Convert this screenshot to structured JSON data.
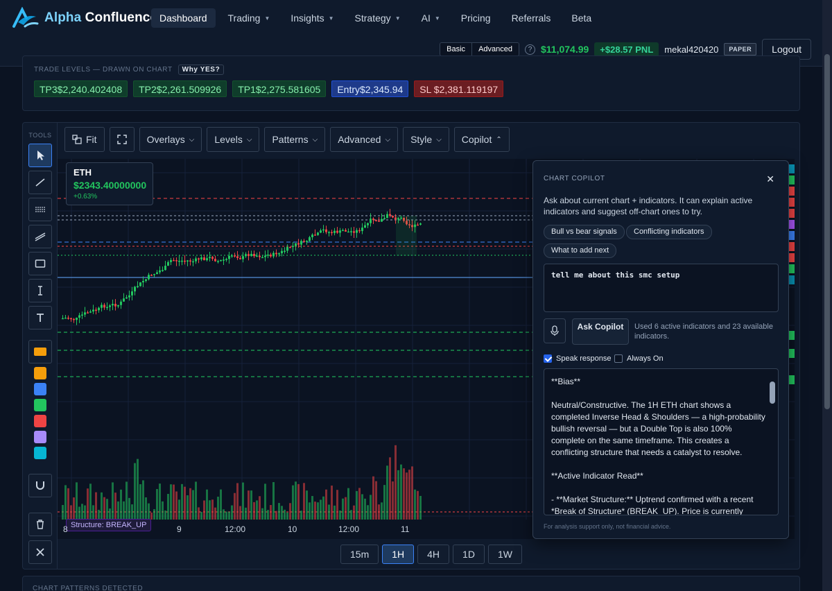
{
  "brand": {
    "name_part1": "Alpha",
    "name_part2": "Confluence"
  },
  "nav": {
    "items": [
      {
        "label": "Dashboard",
        "caret": false
      },
      {
        "label": "Trading",
        "caret": true
      },
      {
        "label": "Insights",
        "caret": true
      },
      {
        "label": "Strategy",
        "caret": true
      },
      {
        "label": "AI",
        "caret": true
      },
      {
        "label": "Pricing",
        "caret": false
      },
      {
        "label": "Referrals",
        "caret": false
      },
      {
        "label": "Beta",
        "caret": false
      }
    ]
  },
  "account": {
    "mode_basic": "Basic",
    "mode_advanced": "Advanced",
    "help": "?",
    "balance": "$11,074.99",
    "pnl": "+$28.57 PNL",
    "username": "mekal420420",
    "paper_badge": "PAPER",
    "logout": "Logout"
  },
  "trade_levels": {
    "heading": "TRADE LEVELS — DRAWN ON CHART",
    "why_button": "Why YES?",
    "chips": [
      {
        "label": "TP3$2,240.402408",
        "kind": "tp"
      },
      {
        "label": "TP2$2,261.509926",
        "kind": "tp"
      },
      {
        "label": "TP1$2,275.581605",
        "kind": "tp"
      },
      {
        "label": "Entry$2,345.94",
        "kind": "entry"
      },
      {
        "label": "SL $2,381.119197",
        "kind": "sl"
      }
    ]
  },
  "tools": {
    "label": "TOOLS",
    "swatch_colors": [
      "#f59e0b",
      "#3b82f6",
      "#22c55e",
      "#ef4444",
      "#a78bfa",
      "#06b6d4"
    ],
    "active_color": "#f59e0b"
  },
  "toolbar": {
    "fit": "Fit",
    "overlays": "Overlays",
    "levels": "Levels",
    "patterns": "Patterns",
    "advanced": "Advanced",
    "style": "Style",
    "copilot": "Copilot"
  },
  "ticker": {
    "symbol": "ETH",
    "price": "$2343.40000000",
    "change": "+0.63%"
  },
  "chart": {
    "structure_badge": "Structure: BREAK_UP",
    "x_labels": [
      "8",
      "9",
      "12:00",
      "10",
      "12:00",
      "11"
    ],
    "timeframes": [
      "15m",
      "1H",
      "4H",
      "1D",
      "1W"
    ],
    "active_timeframe": "1H"
  },
  "copilot": {
    "title": "CHART COPILOT",
    "close": "✕",
    "description": "Ask about current chart + indicators. It can explain active indicators and suggest off-chart ones to try.",
    "suggestions": [
      "Bull vs bear signals",
      "Conflicting indicators",
      "What to add next"
    ],
    "input_value": "tell me about this smc setup",
    "ask_button": "Ask Copilot",
    "usage_note": "Used 6 active indicators and 23 available indicators.",
    "speak_label": "Speak response",
    "speak_checked": true,
    "always_on_label": "Always On",
    "always_on_checked": false,
    "response_paragraphs": [
      "**Bias**",
      "Neutral/Constructive. The 1H ETH chart shows a completed Inverse Head & Shoulders — a high-probability bullish reversal — but a Double Top is also 100% complete on the same timeframe. This creates a conflicting structure that needs a catalyst to resolve.",
      "**Active Indicator Read**",
      "- **Market Structure:** Uptrend confirmed with a recent *Break of Structure* (BREAK_UP). Price is currently pulling"
    ],
    "disclaimer": "For analysis support only, not financial advice."
  },
  "patterns_panel": {
    "heading": "CHART PATTERNS DETECTED"
  },
  "colors": {
    "bull": "#22c55e",
    "bear": "#ef4444",
    "accent": "#3b82f6",
    "bg": "#0b1322"
  }
}
